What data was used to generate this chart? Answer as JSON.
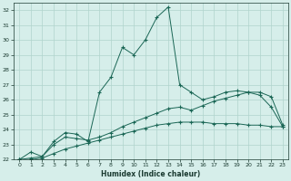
{
  "title": "",
  "xlabel": "Humidex (Indice chaleur)",
  "ylabel": "",
  "bg_color": "#d6eeea",
  "grid_color": "#b0d4cc",
  "line_color": "#1a6655",
  "ylim": [
    22,
    32.5
  ],
  "xlim": [
    -0.5,
    23.5
  ],
  "yticks": [
    22,
    23,
    24,
    25,
    26,
    27,
    28,
    29,
    30,
    31,
    32
  ],
  "xticks": [
    0,
    1,
    2,
    3,
    4,
    5,
    6,
    7,
    8,
    9,
    10,
    11,
    12,
    13,
    14,
    15,
    16,
    17,
    18,
    19,
    20,
    21,
    22,
    23
  ],
  "series": [
    {
      "x": [
        0,
        1,
        2,
        3,
        4,
        5,
        6,
        7,
        8,
        9,
        10,
        11,
        12,
        13,
        14,
        15,
        16,
        17,
        18,
        19,
        20,
        21,
        22,
        23
      ],
      "y": [
        22.0,
        22.5,
        22.2,
        23.2,
        23.8,
        23.7,
        23.2,
        26.5,
        27.5,
        29.5,
        29.0,
        30.0,
        31.5,
        32.2,
        27.0,
        26.5,
        26.0,
        26.2,
        26.5,
        26.6,
        26.5,
        26.3,
        25.5,
        24.2
      ]
    },
    {
      "x": [
        0,
        1,
        2,
        3,
        4,
        5,
        6,
        7,
        8,
        9,
        10,
        11,
        12,
        13,
        14,
        15,
        16,
        17,
        18,
        19,
        20,
        21,
        22,
        23
      ],
      "y": [
        22.0,
        22.1,
        22.2,
        23.0,
        23.5,
        23.4,
        23.3,
        23.5,
        23.8,
        24.2,
        24.5,
        24.8,
        25.1,
        25.4,
        25.5,
        25.3,
        25.6,
        25.9,
        26.1,
        26.3,
        26.5,
        26.5,
        26.2,
        24.3
      ]
    },
    {
      "x": [
        0,
        1,
        2,
        3,
        4,
        5,
        6,
        7,
        8,
        9,
        10,
        11,
        12,
        13,
        14,
        15,
        16,
        17,
        18,
        19,
        20,
        21,
        22,
        23
      ],
      "y": [
        22.0,
        22.0,
        22.1,
        22.4,
        22.7,
        22.9,
        23.1,
        23.3,
        23.5,
        23.7,
        23.9,
        24.1,
        24.3,
        24.4,
        24.5,
        24.5,
        24.5,
        24.4,
        24.4,
        24.4,
        24.3,
        24.3,
        24.2,
        24.2
      ]
    }
  ]
}
